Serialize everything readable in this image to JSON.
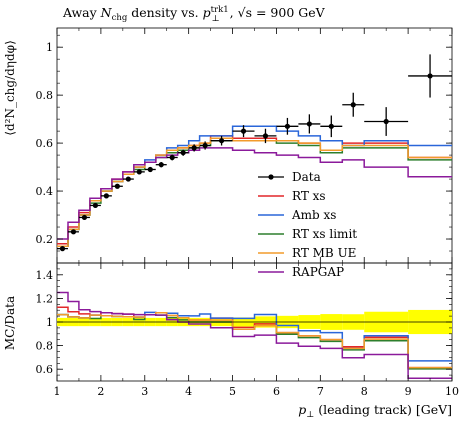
{
  "chart_data": {
    "type": "line",
    "title": {
      "text": "Away N_chg density vs. p_T^trk1, √s = 900 GeV"
    },
    "xlabel": "p⊥ (leading track) [GeV]",
    "ylabel_main": "⟨d²N_chg/dηdφ⟩",
    "ylabel_ratio": "MC/Data",
    "xlim": [
      1,
      10
    ],
    "ylim_main": [
      0.1,
      1.08
    ],
    "ylim_ratio": [
      0.5,
      1.5
    ],
    "x_ticks": [
      "1",
      "2",
      "3",
      "4",
      "5",
      "6",
      "7",
      "8",
      "9",
      "10"
    ],
    "y_ticks_main": [
      "0.2",
      "0.4",
      "0.6",
      "0.8",
      "1"
    ],
    "y_ticks_ratio": [
      "0.6",
      "0.8",
      "1",
      "1.2",
      "1.4"
    ],
    "legend_position": "lower-right",
    "legend": [
      "Data",
      "RT xs",
      "Amb xs",
      "RT xs limit",
      "RT MB UE",
      "RAPGAP"
    ],
    "bin_edges": [
      1.0,
      1.25,
      1.5,
      1.75,
      2.0,
      2.25,
      2.5,
      2.75,
      3.0,
      3.25,
      3.5,
      3.75,
      4.0,
      4.25,
      4.5,
      5.0,
      5.5,
      6.0,
      6.5,
      7.0,
      7.5,
      8.0,
      9.0,
      10.0
    ],
    "data": {
      "name": "Data",
      "x": [
        1.125,
        1.375,
        1.625,
        1.875,
        2.125,
        2.375,
        2.625,
        2.875,
        3.125,
        3.375,
        3.625,
        3.875,
        4.125,
        4.375,
        4.75,
        5.25,
        5.75,
        6.25,
        6.75,
        7.25,
        7.75,
        8.5,
        9.5
      ],
      "y": [
        0.16,
        0.23,
        0.29,
        0.34,
        0.38,
        0.42,
        0.45,
        0.48,
        0.49,
        0.51,
        0.54,
        0.56,
        0.58,
        0.59,
        0.61,
        0.65,
        0.63,
        0.67,
        0.68,
        0.67,
        0.76,
        0.69,
        0.88
      ],
      "yerr": [
        0.005,
        0.005,
        0.005,
        0.006,
        0.006,
        0.007,
        0.008,
        0.009,
        0.01,
        0.011,
        0.012,
        0.013,
        0.015,
        0.017,
        0.02,
        0.025,
        0.03,
        0.035,
        0.04,
        0.045,
        0.05,
        0.06,
        0.09
      ]
    },
    "series": [
      {
        "name": "RT xs",
        "color": "#e2272a",
        "values": [
          0.18,
          0.25,
          0.31,
          0.36,
          0.41,
          0.45,
          0.48,
          0.5,
          0.52,
          0.55,
          0.56,
          0.58,
          0.59,
          0.6,
          0.63,
          0.62,
          0.62,
          0.61,
          0.6,
          0.57,
          0.6,
          0.6,
          0.54
        ]
      },
      {
        "name": "Amb xs",
        "color": "#2a66d9",
        "values": [
          0.17,
          0.24,
          0.3,
          0.36,
          0.4,
          0.44,
          0.47,
          0.5,
          0.53,
          0.55,
          0.58,
          0.59,
          0.61,
          0.63,
          0.63,
          0.67,
          0.67,
          0.65,
          0.63,
          0.61,
          0.59,
          0.61,
          0.59
        ]
      },
      {
        "name": "RT xs limit",
        "color": "#2d7f2d",
        "values": [
          0.17,
          0.24,
          0.3,
          0.35,
          0.4,
          0.44,
          0.47,
          0.49,
          0.52,
          0.54,
          0.56,
          0.57,
          0.58,
          0.59,
          0.61,
          0.61,
          0.61,
          0.6,
          0.59,
          0.56,
          0.58,
          0.58,
          0.53
        ]
      },
      {
        "name": "RT MB UE",
        "color": "#f29b2c",
        "values": [
          0.17,
          0.24,
          0.3,
          0.36,
          0.4,
          0.44,
          0.47,
          0.5,
          0.52,
          0.55,
          0.57,
          0.58,
          0.59,
          0.6,
          0.62,
          0.61,
          0.61,
          0.61,
          0.6,
          0.57,
          0.59,
          0.59,
          0.54
        ]
      },
      {
        "name": "RAPGAP",
        "color": "#8b1a9b",
        "values": [
          0.2,
          0.27,
          0.32,
          0.37,
          0.41,
          0.45,
          0.48,
          0.51,
          0.52,
          0.54,
          0.55,
          0.56,
          0.57,
          0.58,
          0.58,
          0.57,
          0.56,
          0.55,
          0.54,
          0.52,
          0.53,
          0.5,
          0.46
        ]
      }
    ],
    "band_color": "#ffff00"
  }
}
